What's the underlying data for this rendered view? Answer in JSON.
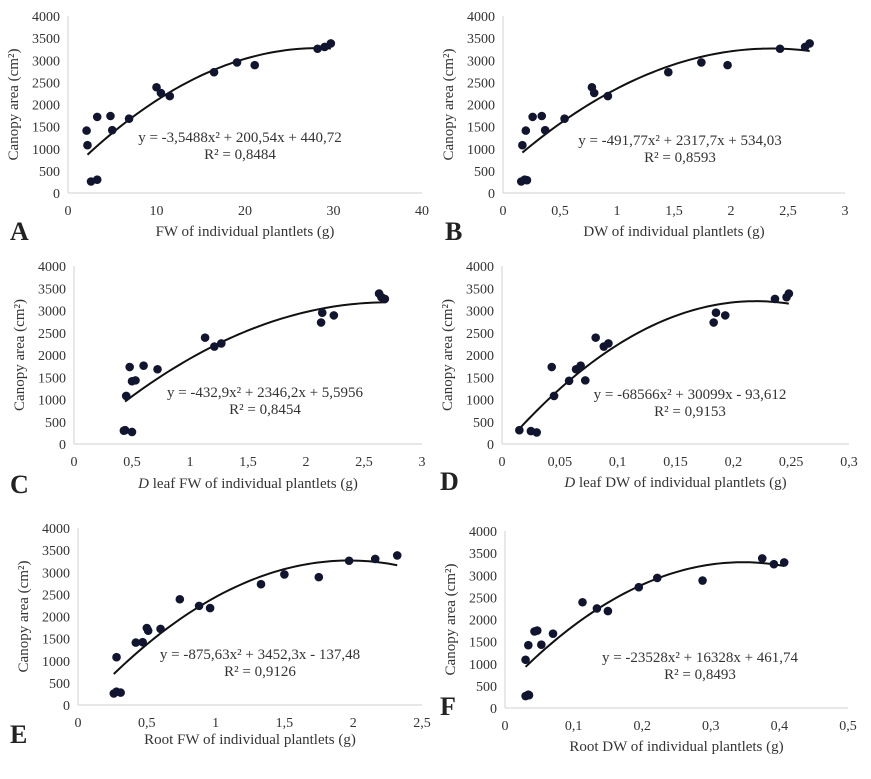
{
  "chart_data": [
    {
      "id": "A",
      "type": "scatter",
      "panel_letter": "A",
      "title": "",
      "xlabel": "FW of individual plantlets (g)",
      "ylabel": "Canopy area (cm²)",
      "xlim": [
        0,
        40
      ],
      "ylim": [
        0,
        4000
      ],
      "xticks": [
        0,
        10,
        20,
        30,
        40
      ],
      "xtick_labels": [
        "0",
        "10",
        "20",
        "30",
        "40"
      ],
      "yticks": [
        0,
        500,
        1000,
        1500,
        2000,
        2500,
        3000,
        3500,
        4000
      ],
      "ytick_labels": [
        "0",
        "500",
        "1000",
        "1500",
        "2000",
        "2500",
        "3000",
        "3500",
        "4000"
      ],
      "points": [
        [
          2.1,
          1410
        ],
        [
          2.2,
          1080
        ],
        [
          2.6,
          260
        ],
        [
          3.3,
          300
        ],
        [
          3.3,
          1720
        ],
        [
          4.8,
          1740
        ],
        [
          5.0,
          1420
        ],
        [
          6.9,
          1680
        ],
        [
          10.0,
          2390
        ],
        [
          10.5,
          2260
        ],
        [
          11.5,
          2190
        ],
        [
          16.5,
          2730
        ],
        [
          19.1,
          2950
        ],
        [
          21.1,
          2890
        ],
        [
          28.2,
          3260
        ],
        [
          29.0,
          3300
        ],
        [
          29.7,
          3380
        ]
      ],
      "fit": {
        "type": "poly2",
        "a": -3.5488,
        "b": 200.54,
        "c": 440.72,
        "x_range": [
          2.2,
          29.7
        ]
      },
      "equation": "y = -3,5488x² + 200,54x + 440,72",
      "r2": "R² = 0,8484",
      "grid": false,
      "legend": "none"
    },
    {
      "id": "B",
      "type": "scatter",
      "panel_letter": "B",
      "title": "",
      "xlabel": "DW of individual plantlets (g)",
      "ylabel": "Canopy area (cm²)",
      "xlim": [
        0,
        3
      ],
      "ylim": [
        0,
        4000
      ],
      "xticks": [
        0,
        0.5,
        1,
        1.5,
        2,
        2.5,
        3
      ],
      "xtick_labels": [
        "0",
        "0,5",
        "1",
        "1,5",
        "2",
        "2,5",
        "3"
      ],
      "yticks": [
        0,
        500,
        1000,
        1500,
        2000,
        2500,
        3000,
        3500,
        4000
      ],
      "ytick_labels": [
        "0",
        "500",
        "1000",
        "1500",
        "2000",
        "2500",
        "3000",
        "3500",
        "4000"
      ],
      "points": [
        [
          0.16,
          260
        ],
        [
          0.17,
          1080
        ],
        [
          0.19,
          300
        ],
        [
          0.2,
          1410
        ],
        [
          0.21,
          290
        ],
        [
          0.26,
          1720
        ],
        [
          0.34,
          1740
        ],
        [
          0.37,
          1420
        ],
        [
          0.54,
          1680
        ],
        [
          0.78,
          2390
        ],
        [
          0.8,
          2260
        ],
        [
          0.92,
          2190
        ],
        [
          1.45,
          2730
        ],
        [
          1.74,
          2950
        ],
        [
          1.97,
          2890
        ],
        [
          2.43,
          3260
        ],
        [
          2.65,
          3300
        ],
        [
          2.69,
          3380
        ]
      ],
      "fit": {
        "type": "poly2",
        "a": -491.77,
        "b": 2317.7,
        "c": 534.03,
        "x_range": [
          0.17,
          2.69
        ]
      },
      "equation": "y = -491,77x² + 2317,7x + 534,03",
      "r2": "R² = 0,8593",
      "grid": false,
      "legend": "none"
    },
    {
      "id": "C",
      "type": "scatter",
      "panel_letter": "C",
      "title": "",
      "xlabel_italic": "D",
      "xlabel": " leaf FW of individual plantlets (g)",
      "ylabel": "Canopy area (cm²)",
      "xlim": [
        0,
        3
      ],
      "ylim": [
        0,
        4000
      ],
      "xticks": [
        0,
        0.5,
        1,
        1.5,
        2,
        2.5,
        3
      ],
      "xtick_labels": [
        "0",
        "0,5",
        "1",
        "1,5",
        "2",
        "2,5",
        "3"
      ],
      "yticks": [
        0,
        500,
        1000,
        1500,
        2000,
        2500,
        3000,
        3500,
        4000
      ],
      "ytick_labels": [
        "0",
        "500",
        "1000",
        "1500",
        "2000",
        "2500",
        "3000",
        "3500",
        "4000"
      ],
      "points": [
        [
          0.43,
          300
        ],
        [
          0.44,
          310
        ],
        [
          0.45,
          1080
        ],
        [
          0.48,
          1730
        ],
        [
          0.5,
          270
        ],
        [
          0.5,
          1410
        ],
        [
          0.53,
          1430
        ],
        [
          0.6,
          1760
        ],
        [
          0.72,
          1680
        ],
        [
          1.13,
          2390
        ],
        [
          1.21,
          2190
        ],
        [
          1.27,
          2260
        ],
        [
          2.13,
          2730
        ],
        [
          2.14,
          2950
        ],
        [
          2.24,
          2890
        ],
        [
          2.63,
          3380
        ],
        [
          2.65,
          3300
        ],
        [
          2.68,
          3260
        ]
      ],
      "fit": {
        "type": "poly2",
        "a": -432.9,
        "b": 2346.2,
        "c": 5.5956,
        "x_range": [
          0.44,
          2.69
        ]
      },
      "equation": "y = -432,9x² + 2346,2x + 5,5956",
      "r2": "R² = 0,8454",
      "grid": false,
      "legend": "none"
    },
    {
      "id": "D",
      "type": "scatter",
      "panel_letter": "D",
      "title": "",
      "xlabel_italic": "D",
      "xlabel": " leaf DW of individual plantlets (g)",
      "ylabel": "Canopy area (cm²)",
      "xlim": [
        0,
        0.3
      ],
      "ylim": [
        0,
        4000
      ],
      "xticks": [
        0,
        0.05,
        0.1,
        0.15,
        0.2,
        0.25,
        0.3
      ],
      "xtick_labels": [
        "0",
        "0,05",
        "0,1",
        "0,15",
        "0,2",
        "0,25",
        "0,3"
      ],
      "yticks": [
        0,
        500,
        1000,
        1500,
        2000,
        2500,
        3000,
        3500,
        4000
      ],
      "ytick_labels": [
        "0",
        "500",
        "1000",
        "1500",
        "2000",
        "2500",
        "3000",
        "3500",
        "4000"
      ],
      "points": [
        [
          0.015,
          310
        ],
        [
          0.025,
          290
        ],
        [
          0.03,
          260
        ],
        [
          0.043,
          1730
        ],
        [
          0.045,
          1080
        ],
        [
          0.058,
          1420
        ],
        [
          0.064,
          1680
        ],
        [
          0.068,
          1760
        ],
        [
          0.072,
          1430
        ],
        [
          0.081,
          2390
        ],
        [
          0.088,
          2190
        ],
        [
          0.092,
          2260
        ],
        [
          0.183,
          2730
        ],
        [
          0.185,
          2950
        ],
        [
          0.193,
          2890
        ],
        [
          0.236,
          3260
        ],
        [
          0.246,
          3300
        ],
        [
          0.248,
          3380
        ]
      ],
      "fit": {
        "type": "poly2",
        "a": -68566,
        "b": 30099,
        "c": -93.612,
        "x_range": [
          0.015,
          0.248
        ]
      },
      "equation": "y = -68566x² + 30099x - 93,612",
      "r2": "R² = 0,9153",
      "grid": false,
      "legend": "none"
    },
    {
      "id": "E",
      "type": "scatter",
      "panel_letter": "E",
      "title": "",
      "xlabel": "Root FW of individual plantlets (g)",
      "ylabel": "Canopy area (cm²)",
      "xlim": [
        0,
        2.5
      ],
      "ylim": [
        0,
        4000
      ],
      "xticks": [
        0,
        0.5,
        1,
        1.5,
        2,
        2.5
      ],
      "xtick_labels": [
        "0",
        "0,5",
        "1",
        "1,5",
        "2",
        "2,5"
      ],
      "yticks": [
        0,
        500,
        1000,
        1500,
        2000,
        2500,
        3000,
        3500,
        4000
      ],
      "ytick_labels": [
        "0",
        "500",
        "1000",
        "1500",
        "2000",
        "2500",
        "3000",
        "3500",
        "4000"
      ],
      "points": [
        [
          0.26,
          260
        ],
        [
          0.28,
          300
        ],
        [
          0.28,
          1080
        ],
        [
          0.31,
          280
        ],
        [
          0.42,
          1410
        ],
        [
          0.47,
          1420
        ],
        [
          0.5,
          1740
        ],
        [
          0.51,
          1680
        ],
        [
          0.6,
          1720
        ],
        [
          0.74,
          2390
        ],
        [
          0.88,
          2240
        ],
        [
          0.96,
          2190
        ],
        [
          1.33,
          2730
        ],
        [
          1.5,
          2950
        ],
        [
          1.75,
          2890
        ],
        [
          1.97,
          3260
        ],
        [
          2.16,
          3300
        ],
        [
          2.32,
          3380
        ]
      ],
      "fit": {
        "type": "poly2",
        "a": -875.63,
        "b": 3452.3,
        "c": -137.48,
        "x_range": [
          0.26,
          2.32
        ]
      },
      "equation": "y = -875,63x² + 3452,3x - 137,48",
      "r2": "R² = 0,9126",
      "grid": false,
      "legend": "none"
    },
    {
      "id": "F",
      "type": "scatter",
      "panel_letter": "F",
      "title": "",
      "xlabel": "Root DW of individual plantlets (g)",
      "ylabel": "Canopy area (cm²)",
      "xlim": [
        0,
        0.5
      ],
      "ylim": [
        0,
        4000
      ],
      "xticks": [
        0,
        0.1,
        0.2,
        0.3,
        0.4,
        0.5
      ],
      "xtick_labels": [
        "0",
        "0,1",
        "0,2",
        "0,3",
        "0,4",
        "0,5"
      ],
      "yticks": [
        0,
        500,
        1000,
        1500,
        2000,
        2500,
        3000,
        3500,
        4000
      ],
      "ytick_labels": [
        "0",
        "500",
        "1000",
        "1500",
        "2000",
        "2500",
        "3000",
        "3500",
        "4000"
      ],
      "points": [
        [
          0.03,
          1090
        ],
        [
          0.03,
          270
        ],
        [
          0.034,
          300
        ],
        [
          0.035,
          290
        ],
        [
          0.034,
          1420
        ],
        [
          0.043,
          1730
        ],
        [
          0.047,
          1750
        ],
        [
          0.053,
          1430
        ],
        [
          0.07,
          1680
        ],
        [
          0.113,
          2390
        ],
        [
          0.134,
          2250
        ],
        [
          0.15,
          2190
        ],
        [
          0.195,
          2730
        ],
        [
          0.222,
          2940
        ],
        [
          0.288,
          2880
        ],
        [
          0.375,
          3380
        ],
        [
          0.392,
          3250
        ],
        [
          0.407,
          3290
        ]
      ],
      "fit": {
        "type": "poly2",
        "a": -23528,
        "b": 16328,
        "c": 461.74,
        "x_range": [
          0.03,
          0.407
        ]
      },
      "equation": "y = -23528x² + 16328x + 461,74",
      "r2": "R² = 0,8493",
      "grid": false,
      "legend": "none"
    }
  ]
}
